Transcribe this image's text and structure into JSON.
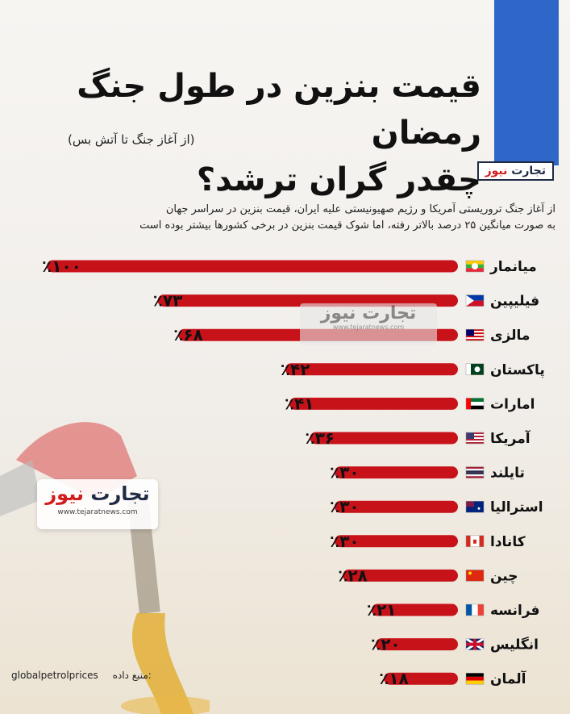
{
  "header": {
    "title_line1": "قیمت بنزین در طول جنگ رمضان",
    "title_line2": "چقدر گران ترشد؟",
    "subtitle": "(از آغاز جنگ تا آتش بس)",
    "brand_a": "تجارت",
    "brand_b": "نیوز"
  },
  "intro": {
    "line1": "از آغاز جنگ تروریستی آمریکا و رژیم صهیونیستی علیه ایران، قیمت بنزین در سراسر جهان",
    "line2": "به صورت میانگین ۲۵ درصد بالاتر رفته، اما شوک قیمت بنزین در برخی کشورها بیشتر بوده است"
  },
  "watermark": {
    "name": "تجارت نیوز",
    "url": "www.tejaratnews.com"
  },
  "logo": {
    "a": "تجارت",
    "b": "نیوز",
    "url": "www.tejaratnews.com"
  },
  "source": {
    "label": "منبع داده:",
    "value": "globalpetrolprices"
  },
  "colors": {
    "bar": "#c8121a",
    "brand_blue": "#2f67c9",
    "brand_red": "#d11d1d"
  },
  "chart_data": {
    "type": "bar",
    "orientation": "horizontal",
    "categories": [
      "میانمار",
      "فیلیپین",
      "مالزی",
      "پاکستان",
      "امارات",
      "آمریکا",
      "تایلند",
      "استرالیا",
      "کانادا",
      "چین",
      "فرانسه",
      "انگلیس",
      "آلمان"
    ],
    "values": [
      100,
      73,
      68,
      42,
      41,
      36,
      30,
      30,
      30,
      28,
      21,
      20,
      18
    ],
    "value_labels": [
      "٪۱۰۰",
      "٪۷۳",
      "٪۶۸",
      "٪۴۲",
      "٪۴۱",
      "٪۳۶",
      "٪۳۰",
      "٪۳۰",
      "٪۳۰",
      "٪۲۸",
      "٪۲۱",
      "٪۲۰",
      "٪۱۸"
    ],
    "flags": [
      "myanmar",
      "philippines",
      "malaysia",
      "pakistan",
      "uae",
      "usa",
      "thailand",
      "australia",
      "canada",
      "china",
      "france",
      "uk",
      "germany"
    ],
    "unit": "%"
  }
}
